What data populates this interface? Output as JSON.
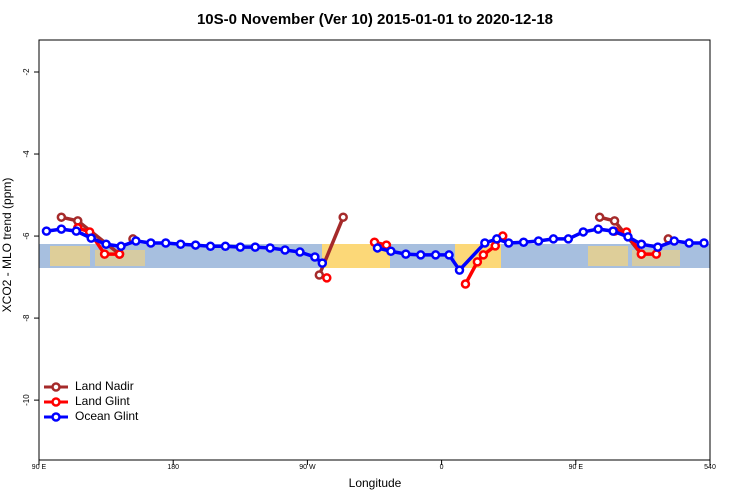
{
  "chart_data": {
    "type": "line",
    "title": "10S-0 November (Ver 10)   2015-01-01 to 2020-12-18",
    "x_label": "Longitude",
    "y_label": "XCO2 - MLO trend (ppm)",
    "xlim": [
      90,
      540
    ],
    "ylim": [
      -1.22,
      -11.46
    ],
    "xticks": [
      {
        "value": 90,
        "label": "90 E"
      },
      180,
      {
        "value": 270,
        "label": "90 W"
      },
      {
        "value": 360,
        "label": "0"
      },
      {
        "value": 450,
        "label": "90 E"
      },
      540
    ],
    "yticks": [
      -2,
      -4,
      -6,
      -8,
      -10
    ],
    "legend": "bottom-left",
    "series": [
      {
        "name": "Land Nadir",
        "color": "#a52a2a",
        "x": [
          105,
          116,
          144,
          null,
          153,
          null,
          278,
          294,
          null,
          466,
          476,
          494,
          null,
          512
        ],
        "values": [
          -5.54,
          -5.63,
          -6.44,
          null,
          -6.07,
          null,
          -6.95,
          -5.54,
          null,
          -5.54,
          -5.63,
          -6.44,
          null,
          -6.07
        ]
      },
      {
        "name": "Land Glint",
        "color": "#ff0000",
        "x": [
          116,
          124,
          134,
          144,
          null,
          283,
          null,
          315,
          323,
          null,
          376,
          384,
          388,
          396,
          401,
          null,
          476,
          484,
          494,
          504
        ],
        "values": [
          -5.8,
          -5.9,
          -6.44,
          -6.44,
          null,
          -7.02,
          null,
          -6.15,
          -6.22,
          null,
          -7.17,
          -6.63,
          -6.46,
          -6.24,
          -6.0,
          null,
          -5.88,
          -5.9,
          -6.44,
          -6.44
        ]
      },
      {
        "name": "Ocean Glint",
        "color": "#0000ff",
        "x": [
          95,
          105,
          115,
          125,
          135,
          145,
          155,
          165,
          175,
          185,
          195,
          205,
          215,
          225,
          235,
          245,
          255,
          265,
          275,
          280,
          null,
          317,
          326,
          336,
          346,
          356,
          365,
          372,
          389,
          397,
          405,
          415,
          425,
          435,
          445,
          455,
          465,
          475,
          485,
          494,
          505,
          516,
          526,
          536
        ],
        "values": [
          -5.88,
          -5.83,
          -5.88,
          -6.05,
          -6.2,
          -6.25,
          -6.12,
          -6.17,
          -6.17,
          -6.2,
          -6.22,
          -6.25,
          -6.25,
          -6.27,
          -6.27,
          -6.29,
          -6.34,
          -6.39,
          -6.51,
          -6.66,
          null,
          -6.29,
          -6.37,
          -6.44,
          -6.46,
          -6.46,
          -6.46,
          -6.83,
          -6.17,
          -6.07,
          -6.17,
          -6.15,
          -6.12,
          -6.07,
          -6.07,
          -5.9,
          -5.83,
          -5.88,
          -6.02,
          -6.2,
          -6.27,
          -6.12,
          -6.17,
          -6.17
        ]
      }
    ]
  }
}
